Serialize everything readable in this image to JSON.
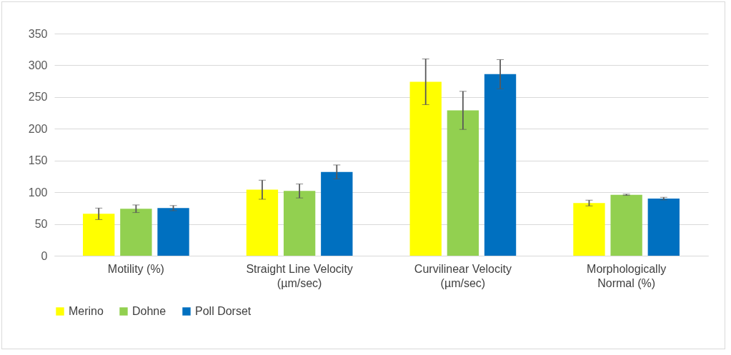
{
  "chart_data": {
    "type": "bar",
    "categories": [
      "Motility (%)",
      "Straight Line Velocity\n(µm/sec)",
      "Curvilinear Velocity\n(µm/sec)",
      "Morphologically\nNormal (%)"
    ],
    "series": [
      {
        "name": "Merino",
        "color": "#ffff00",
        "values": [
          66,
          104,
          274,
          83
        ],
        "errors": [
          9,
          15,
          36,
          4.5
        ]
      },
      {
        "name": "Dohne",
        "color": "#92d050",
        "values": [
          74,
          102,
          229,
          96
        ],
        "errors": [
          6,
          11,
          30,
          1
        ]
      },
      {
        "name": "Poll Dorset",
        "color": "#0070c0",
        "values": [
          75,
          132,
          286,
          90
        ],
        "errors": [
          4,
          11,
          23,
          2
        ]
      }
    ],
    "ylim": [
      0,
      350
    ],
    "yticks": [
      0,
      50,
      100,
      150,
      200,
      250,
      300,
      350
    ],
    "grid": "y",
    "legend": "bottom"
  }
}
